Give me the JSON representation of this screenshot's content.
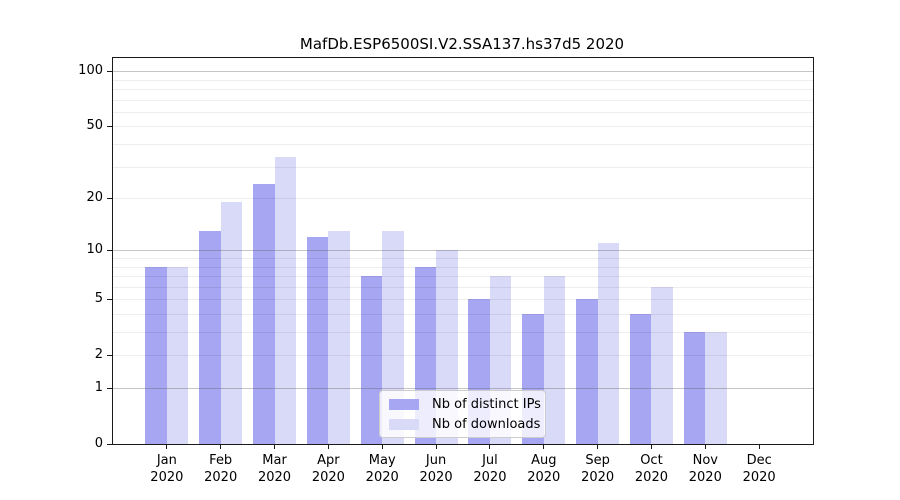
{
  "chart_data": {
    "type": "bar",
    "title": "MafDb.ESP6500SI.V2.SSA137.hs37d5 2020",
    "categories": [
      "Jan",
      "Feb",
      "Mar",
      "Apr",
      "May",
      "Jun",
      "Jul",
      "Aug",
      "Sep",
      "Oct",
      "Nov",
      "Dec"
    ],
    "year_label": "2020",
    "series": [
      {
        "name": "Nb of distinct IPs",
        "color": "#a6a6f2",
        "values": [
          8,
          13,
          24,
          12,
          7,
          8,
          5,
          4,
          5,
          4,
          3,
          0
        ]
      },
      {
        "name": "Nb of downloads",
        "color": "#d9d9f8",
        "values": [
          8,
          19,
          34,
          13,
          13,
          10,
          7,
          7,
          11,
          6,
          3,
          0
        ]
      }
    ],
    "xlabel": "",
    "ylabel": "",
    "yscale": "log1p",
    "ylim": [
      0,
      118
    ],
    "y_ticks": [
      0,
      1,
      2,
      5,
      10,
      20,
      50,
      100
    ],
    "y_major_gridlines": [
      1,
      10,
      100
    ],
    "y_minor_gridlines": [
      2,
      3,
      4,
      5,
      6,
      7,
      8,
      9,
      20,
      30,
      40,
      50,
      60,
      70,
      80,
      90
    ],
    "grid": "horizontal",
    "legend_position": "lower-center",
    "axis_color": "#000000",
    "background_color": "#ffffff"
  }
}
